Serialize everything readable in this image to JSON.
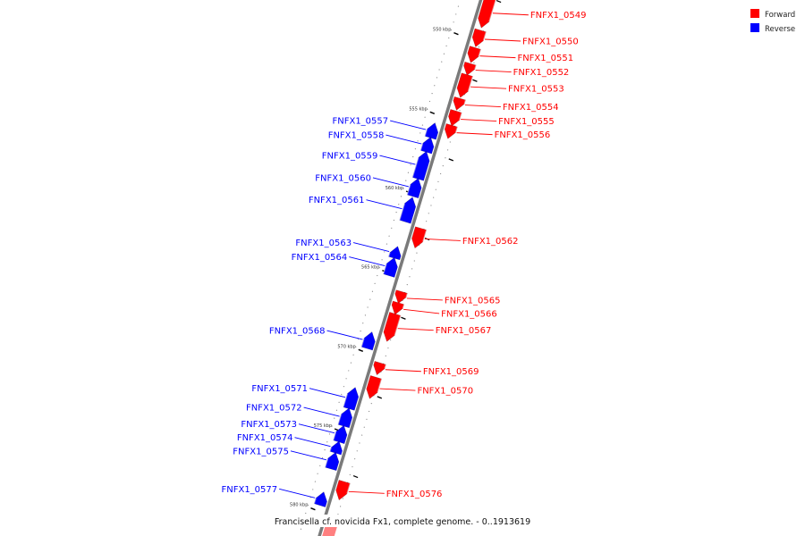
{
  "caption": "Francisella cf. novicida Fx1, complete genome. - 0..1913619",
  "legend": [
    {
      "label": "Forward",
      "color": "#ff0000"
    },
    {
      "label": "Reverse",
      "color": "#0000ff"
    }
  ],
  "colors": {
    "forward": "#ff0000",
    "reverse": "#0000ff",
    "backbone": "#7a7a7a"
  },
  "ticks": [
    {
      "kb": 550,
      "label": "550 kbp"
    },
    {
      "kb": 555,
      "label": "555 kbp"
    },
    {
      "kb": 560,
      "label": "560 kbp"
    },
    {
      "kb": 565,
      "label": "565 kbp"
    },
    {
      "kb": 570,
      "label": "570 kbp"
    },
    {
      "kb": 575,
      "label": "575 kbp"
    },
    {
      "kb": 580,
      "label": "580 kbp"
    }
  ],
  "genes": [
    {
      "name": "FNFX1_0549",
      "strand": "forward",
      "start": 547.4,
      "end": 549.2
    },
    {
      "name": "FNFX1_0550",
      "strand": "forward",
      "start": 549.5,
      "end": 550.4
    },
    {
      "name": "FNFX1_0551",
      "strand": "forward",
      "start": 550.6,
      "end": 551.4
    },
    {
      "name": "FNFX1_0552",
      "strand": "forward",
      "start": 551.6,
      "end": 552.2
    },
    {
      "name": "FNFX1_0553",
      "strand": "forward",
      "start": 552.3,
      "end": 553.6
    },
    {
      "name": "FNFX1_0554",
      "strand": "forward",
      "start": 553.8,
      "end": 554.4
    },
    {
      "name": "FNFX1_0555",
      "strand": "forward",
      "start": 554.6,
      "end": 555.4
    },
    {
      "name": "FNFX1_0557",
      "strand": "reverse",
      "start": 555.8,
      "end": 556.6
    },
    {
      "name": "FNFX1_0558",
      "strand": "reverse",
      "start": 556.7,
      "end": 557.5
    },
    {
      "name": "FNFX1_0559",
      "strand": "reverse",
      "start": 557.6,
      "end": 559.2
    },
    {
      "name": "FNFX1_0560",
      "strand": "reverse",
      "start": 559.3,
      "end": 560.3
    },
    {
      "name": "FNFX1_0561",
      "strand": "reverse",
      "start": 560.5,
      "end": 561.9
    },
    {
      "name": "FNFX1_0562",
      "strand": "forward",
      "start": 562.0,
      "end": 563.1
    },
    {
      "name": "FNFX1_0563",
      "strand": "reverse",
      "start": 563.6,
      "end": 564.2
    },
    {
      "name": "FNFX1_0564",
      "strand": "reverse",
      "start": 564.3,
      "end": 565.3
    },
    {
      "name": "FNFX1_0565",
      "strand": "forward",
      "start": 566.0,
      "end": 566.6
    },
    {
      "name": "FNFX1_0566",
      "strand": "forward",
      "start": 566.7,
      "end": 567.3
    },
    {
      "name": "FNFX1_0567",
      "strand": "forward",
      "start": 567.4,
      "end": 569.0
    },
    {
      "name": "FNFX1_0568",
      "strand": "reverse",
      "start": 569.0,
      "end": 569.9
    },
    {
      "name": "FNFX1_0569",
      "strand": "forward",
      "start": 570.5,
      "end": 571.1
    },
    {
      "name": "FNFX1_0570",
      "strand": "forward",
      "start": 571.4,
      "end": 572.6
    },
    {
      "name": "FNFX1_0571",
      "strand": "reverse",
      "start": 572.5,
      "end": 573.7
    },
    {
      "name": "FNFX1_0572",
      "strand": "reverse",
      "start": 573.8,
      "end": 574.8
    },
    {
      "name": "FNFX1_0573",
      "strand": "reverse",
      "start": 574.9,
      "end": 575.8
    },
    {
      "name": "FNFX1_0574",
      "strand": "reverse",
      "start": 575.9,
      "end": 576.5
    },
    {
      "name": "FNFX1_0575",
      "strand": "reverse",
      "start": 576.6,
      "end": 577.5
    },
    {
      "name": "FNFX1_0556",
      "strand": "forward",
      "start": 555.5,
      "end": 556.2
    },
    {
      "name": "FNFX1_0576",
      "strand": "forward",
      "start": 578.0,
      "end": 579.0
    },
    {
      "name": "FNFX1_0577",
      "strand": "reverse",
      "start": 579.1,
      "end": 579.8
    }
  ]
}
